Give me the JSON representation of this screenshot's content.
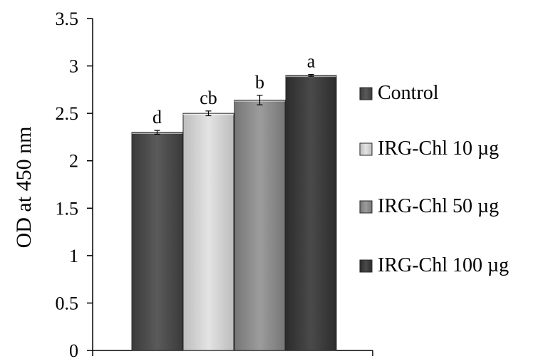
{
  "chart_data": {
    "type": "bar",
    "title": "",
    "xlabel": "",
    "ylabel": "OD at 450 nm",
    "ylim": [
      0,
      3.5
    ],
    "yticks": [
      "0",
      "0.5",
      "1",
      "1.5",
      "2",
      "2.5",
      "3",
      "3.5"
    ],
    "grid": false,
    "legend_position": "right",
    "series": [
      {
        "name": "Control",
        "value": 2.3,
        "error": 0.02,
        "label": "d",
        "color": "#4a4a4a"
      },
      {
        "name": "IRG-Chl 10 µg",
        "value": 2.5,
        "error": 0.025,
        "label": "cb",
        "color": "#cfcfcf"
      },
      {
        "name": "IRG-Chl 50 µg",
        "value": 2.64,
        "error": 0.05,
        "label": "b",
        "color": "#8a8a8a"
      },
      {
        "name": "IRG-Chl 100 µg",
        "value": 2.9,
        "error": 0.01,
        "label": "a",
        "color": "#3a3a3a"
      }
    ]
  }
}
